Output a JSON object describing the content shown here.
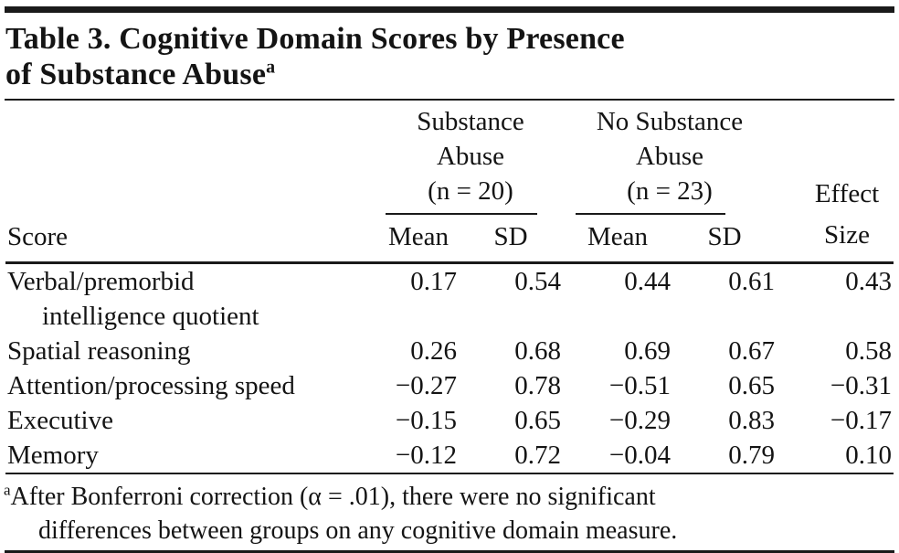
{
  "page": {
    "background": "#ffffff",
    "text_color": "#141414",
    "rule_color": "#1a1a1a"
  },
  "table": {
    "title": {
      "line1": "Table 3. Cognitive Domain Scores by Presence",
      "line2": "of Substance Abuse",
      "superscript": "a"
    },
    "header": {
      "score_label": "Score",
      "groups": [
        {
          "name_line1": "Substance",
          "name_line2": "Abuse",
          "n_label": "(n = 20)",
          "sub": [
            "Mean",
            "SD"
          ]
        },
        {
          "name_line1": "No Substance",
          "name_line2": "Abuse",
          "n_label": "(n = 23)",
          "sub": [
            "Mean",
            "SD"
          ]
        }
      ],
      "effect": {
        "line1": "Effect",
        "line2": "Size"
      }
    },
    "rows": [
      {
        "label_lines": [
          "Verbal/premorbid",
          "intelligence quotient"
        ],
        "sa_mean": "0.17",
        "sa_sd": "0.54",
        "nsa_mean": "0.44",
        "nsa_sd": "0.61",
        "effect_size": "0.43"
      },
      {
        "label_lines": [
          "Spatial reasoning"
        ],
        "sa_mean": "0.26",
        "sa_sd": "0.68",
        "nsa_mean": "0.69",
        "nsa_sd": "0.67",
        "effect_size": "0.58"
      },
      {
        "label_lines": [
          "Attention/processing speed"
        ],
        "sa_mean": "−0.27",
        "sa_sd": "0.78",
        "nsa_mean": "−0.51",
        "nsa_sd": "0.65",
        "effect_size": "−0.31"
      },
      {
        "label_lines": [
          "Executive"
        ],
        "sa_mean": "−0.15",
        "sa_sd": "0.65",
        "nsa_mean": "−0.29",
        "nsa_sd": "0.83",
        "effect_size": "−0.17"
      },
      {
        "label_lines": [
          "Memory"
        ],
        "sa_mean": "−0.12",
        "sa_sd": "0.72",
        "nsa_mean": "−0.04",
        "nsa_sd": "0.79",
        "effect_size": "0.10"
      }
    ],
    "footnote": {
      "marker": "a",
      "line1": "After Bonferroni correction (α = .01), there were no significant",
      "line2": "differences between groups on any cognitive domain measure."
    }
  }
}
